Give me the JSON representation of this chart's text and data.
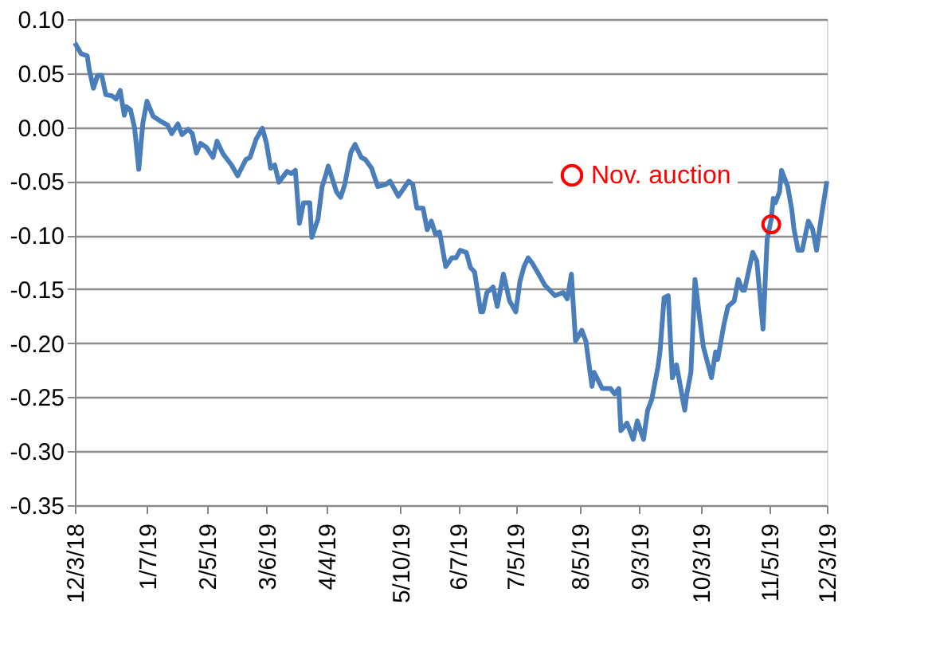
{
  "chart_data": {
    "type": "line",
    "x": [
      "2018-12-03",
      "2018-12-06",
      "2018-12-09",
      "2018-12-10",
      "2018-12-12",
      "2018-12-14",
      "2018-12-16",
      "2018-12-18",
      "2018-12-21",
      "2018-12-23",
      "2018-12-25",
      "2018-12-27",
      "2018-12-28",
      "2018-12-30",
      "2019-01-01",
      "2019-01-03",
      "2019-01-05",
      "2019-01-07",
      "2019-01-10",
      "2019-01-14",
      "2019-01-17",
      "2019-01-19",
      "2019-01-22",
      "2019-01-24",
      "2019-01-27",
      "2019-01-29",
      "2019-01-31",
      "2019-02-02",
      "2019-02-05",
      "2019-02-08",
      "2019-02-10",
      "2019-02-13",
      "2019-02-17",
      "2019-02-20",
      "2019-02-24",
      "2019-02-26",
      "2019-03-01",
      "2019-03-04",
      "2019-03-06",
      "2019-03-08",
      "2019-03-10",
      "2019-03-12",
      "2019-03-16",
      "2019-03-18",
      "2019-03-20",
      "2019-03-22",
      "2019-03-24",
      "2019-03-27",
      "2019-03-28",
      "2019-03-31",
      "2019-04-02",
      "2019-04-04",
      "2019-04-05",
      "2019-04-09",
      "2019-04-11",
      "2019-04-13",
      "2019-04-16",
      "2019-04-18",
      "2019-04-21",
      "2019-04-23",
      "2019-04-26",
      "2019-04-29",
      "2019-05-03",
      "2019-05-05",
      "2019-05-09",
      "2019-05-14",
      "2019-05-16",
      "2019-05-18",
      "2019-05-21",
      "2019-05-23",
      "2019-05-25",
      "2019-05-27",
      "2019-05-29",
      "2019-06-01",
      "2019-06-04",
      "2019-06-06",
      "2019-06-08",
      "2019-06-11",
      "2019-06-13",
      "2019-06-15",
      "2019-06-18",
      "2019-06-19",
      "2019-06-21",
      "2019-06-24",
      "2019-06-26",
      "2019-06-29",
      "2019-07-02",
      "2019-07-05",
      "2019-07-07",
      "2019-07-09",
      "2019-07-11",
      "2019-07-13",
      "2019-07-17",
      "2019-07-19",
      "2019-07-24",
      "2019-07-28",
      "2019-07-30",
      "2019-08-01",
      "2019-08-03",
      "2019-08-06",
      "2019-08-08",
      "2019-08-11",
      "2019-08-12",
      "2019-08-16",
      "2019-08-20",
      "2019-08-22",
      "2019-08-24",
      "2019-08-25",
      "2019-08-28",
      "2019-08-31",
      "2019-09-02",
      "2019-09-05",
      "2019-09-07",
      "2019-09-09",
      "2019-09-12",
      "2019-09-13",
      "2019-09-15",
      "2019-09-17",
      "2019-09-19",
      "2019-09-21",
      "2019-09-25",
      "2019-09-26",
      "2019-09-28",
      "2019-09-30",
      "2019-10-02",
      "2019-10-04",
      "2019-10-08",
      "2019-10-10",
      "2019-10-11",
      "2019-10-14",
      "2019-10-16",
      "2019-10-19",
      "2019-10-21",
      "2019-10-23",
      "2019-10-24",
      "2019-10-28",
      "2019-10-30",
      "2019-11-02",
      "2019-11-04",
      "2019-11-06",
      "2019-11-07",
      "2019-11-08",
      "2019-11-10",
      "2019-11-11",
      "2019-11-14",
      "2019-11-16",
      "2019-11-17",
      "2019-11-19",
      "2019-11-21",
      "2019-11-24",
      "2019-11-26",
      "2019-11-28",
      "2019-11-30",
      "2019-12-03"
    ],
    "series": [
      {
        "type": "line",
        "color": "#4a7ebb",
        "values": [
          0.078,
          0.068,
          0.066,
          0.053,
          0.036,
          0.048,
          0.048,
          0.03,
          0.029,
          0.026,
          0.034,
          0.011,
          0.019,
          0.016,
          -0.001,
          -0.039,
          0.004,
          0.024,
          0.01,
          0.005,
          0.002,
          -0.006,
          0.003,
          -0.007,
          -0.002,
          -0.006,
          -0.024,
          -0.015,
          -0.019,
          -0.028,
          -0.013,
          -0.025,
          -0.035,
          -0.045,
          -0.03,
          -0.028,
          -0.011,
          -0.001,
          -0.015,
          -0.038,
          -0.035,
          -0.051,
          -0.041,
          -0.043,
          -0.04,
          -0.089,
          -0.07,
          -0.07,
          -0.102,
          -0.085,
          -0.055,
          -0.043,
          -0.036,
          -0.06,
          -0.065,
          -0.053,
          -0.023,
          -0.016,
          -0.028,
          -0.03,
          -0.038,
          -0.055,
          -0.053,
          -0.05,
          -0.064,
          -0.05,
          -0.053,
          -0.075,
          -0.075,
          -0.095,
          -0.087,
          -0.099,
          -0.097,
          -0.129,
          -0.121,
          -0.121,
          -0.114,
          -0.116,
          -0.13,
          -0.134,
          -0.171,
          -0.171,
          -0.153,
          -0.148,
          -0.166,
          -0.136,
          -0.161,
          -0.171,
          -0.143,
          -0.129,
          -0.121,
          -0.126,
          -0.139,
          -0.146,
          -0.156,
          -0.153,
          -0.159,
          -0.136,
          -0.198,
          -0.188,
          -0.198,
          -0.24,
          -0.227,
          -0.242,
          -0.242,
          -0.247,
          -0.242,
          -0.281,
          -0.274,
          -0.289,
          -0.272,
          -0.289,
          -0.262,
          -0.252,
          -0.222,
          -0.208,
          -0.158,
          -0.156,
          -0.232,
          -0.22,
          -0.262,
          -0.247,
          -0.227,
          -0.141,
          -0.173,
          -0.203,
          -0.232,
          -0.208,
          -0.215,
          -0.183,
          -0.166,
          -0.161,
          -0.141,
          -0.151,
          -0.151,
          -0.116,
          -0.124,
          -0.187,
          -0.104,
          -0.085,
          -0.066,
          -0.07,
          -0.06,
          -0.04,
          -0.055,
          -0.077,
          -0.094,
          -0.114,
          -0.114,
          -0.087,
          -0.094,
          -0.114,
          -0.087,
          -0.05
        ]
      },
      {
        "type": "scatter",
        "name": "Nov. auction",
        "color": "#ff0000",
        "marker": "circle",
        "x": [
          "2019-11-06"
        ],
        "values": [
          -0.09
        ]
      }
    ],
    "xlim": [
      "2018-12-03",
      "2019-12-03"
    ],
    "xticks": [
      {
        "value": "2018-12-03",
        "label": "12/3/18"
      },
      {
        "value": "2019-01-07",
        "label": "1/7/19"
      },
      {
        "value": "2019-02-05",
        "label": "2/5/19"
      },
      {
        "value": "2019-03-06",
        "label": "3/6/19"
      },
      {
        "value": "2019-04-04",
        "label": "4/4/19"
      },
      {
        "value": "2019-05-10",
        "label": "5/10/19"
      },
      {
        "value": "2019-06-07",
        "label": "6/7/19"
      },
      {
        "value": "2019-07-05",
        "label": "7/5/19"
      },
      {
        "value": "2019-08-05",
        "label": "8/5/19"
      },
      {
        "value": "2019-09-03",
        "label": "9/3/19"
      },
      {
        "value": "2019-10-03",
        "label": "10/3/19"
      },
      {
        "value": "2019-11-05",
        "label": "11/5/19"
      },
      {
        "value": "2019-12-03",
        "label": "12/3/19"
      }
    ],
    "ylim": [
      -0.35,
      0.1
    ],
    "yticks": [
      {
        "value": 0.1,
        "label": "0.10"
      },
      {
        "value": 0.05,
        "label": "0.05"
      },
      {
        "value": 0,
        "label": "0.00"
      },
      {
        "value": -0.05,
        "label": "-0.05"
      },
      {
        "value": -0.1,
        "label": "-0.10"
      },
      {
        "value": -0.15,
        "label": "-0.15"
      },
      {
        "value": -0.2,
        "label": "-0.20"
      },
      {
        "value": -0.25,
        "label": "-0.25"
      },
      {
        "value": -0.3,
        "label": "-0.30"
      },
      {
        "value": -0.35,
        "label": "-0.35"
      }
    ],
    "grid": "y",
    "legend": "top"
  }
}
